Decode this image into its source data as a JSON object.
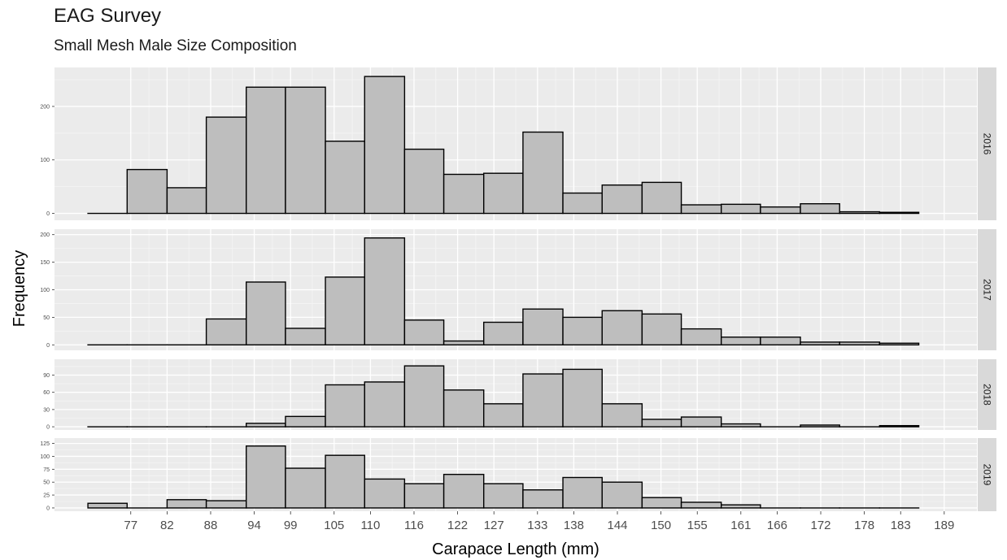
{
  "title": "EAG Survey",
  "subtitle": "Small Mesh Male Size Composition",
  "chart_data": {
    "type": "bar",
    "xlabel": "Carapace Length (mm)",
    "ylabel": "Frequency",
    "x_ticks": [
      77,
      82,
      88,
      94,
      99,
      105,
      110,
      116,
      122,
      127,
      133,
      138,
      144,
      150,
      155,
      161,
      166,
      172,
      178,
      183,
      189
    ],
    "bin_edges": [
      71.1,
      76.5,
      82.0,
      87.4,
      92.9,
      98.3,
      103.8,
      109.2,
      114.7,
      120.1,
      125.6,
      131.0,
      136.5,
      141.9,
      147.4,
      152.8,
      158.3,
      163.7,
      169.2,
      174.6,
      180.1,
      185.5
    ],
    "grid": true,
    "facets": [
      {
        "label": "2016",
        "ylim": [
          0,
          260
        ],
        "y_ticks": [
          0,
          100,
          200
        ],
        "values": [
          0,
          82,
          48,
          180,
          236,
          236,
          135,
          256,
          120,
          73,
          75,
          152,
          38,
          53,
          58,
          16,
          17,
          12,
          18,
          3,
          2
        ]
      },
      {
        "label": "2017",
        "ylim": [
          0,
          200
        ],
        "y_ticks": [
          0,
          50,
          100,
          150,
          200
        ],
        "values": [
          0,
          0,
          0,
          47,
          114,
          30,
          123,
          194,
          45,
          7,
          41,
          65,
          50,
          62,
          56,
          29,
          14,
          14,
          5,
          5,
          3
        ]
      },
      {
        "label": "2018",
        "ylim": [
          0,
          112
        ],
        "y_ticks": [
          0,
          30,
          60,
          90
        ],
        "values": [
          0,
          0,
          0,
          0,
          6,
          18,
          73,
          78,
          106,
          64,
          40,
          92,
          100,
          40,
          13,
          17,
          5,
          0,
          3,
          0,
          2
        ]
      },
      {
        "label": "2019",
        "ylim": [
          0,
          129
        ],
        "y_ticks": [
          0,
          25,
          50,
          75,
          100,
          125
        ],
        "values": [
          9,
          0,
          16,
          14,
          120,
          77,
          102,
          56,
          47,
          65,
          47,
          35,
          59,
          50,
          20,
          11,
          6,
          0,
          0,
          0,
          0
        ]
      }
    ]
  }
}
